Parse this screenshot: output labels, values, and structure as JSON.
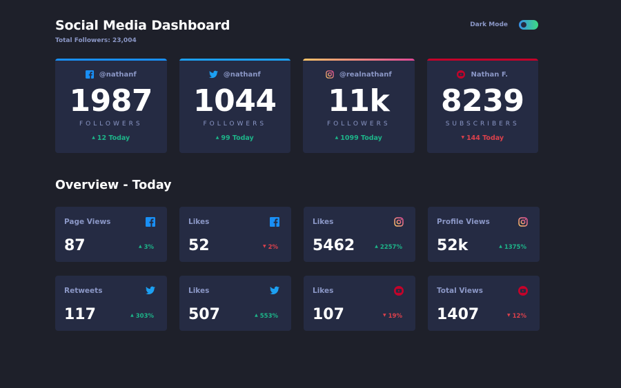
{
  "header": {
    "title": "Social Media Dashboard",
    "total_followers": "Total Followers: 23,004",
    "dark_mode_label": "Dark Mode",
    "dark_mode_on": true
  },
  "colors": {
    "background": "#1e202a",
    "card": "#252b43",
    "muted_text": "#8b97c6",
    "up": "#1db489",
    "down": "#dc414c",
    "facebook": "#198ff5",
    "twitter": "#1ca0f2",
    "instagram_start": "#fdc468",
    "instagram_end": "#df4996",
    "youtube": "#c4032a"
  },
  "cards": [
    {
      "platform": "facebook",
      "handle": "@nathanf",
      "count": "1987",
      "unit": "FOLLOWERS",
      "change": "12 Today",
      "direction": "up"
    },
    {
      "platform": "twitter",
      "handle": "@nathanf",
      "count": "1044",
      "unit": "FOLLOWERS",
      "change": "99 Today",
      "direction": "up"
    },
    {
      "platform": "instagram",
      "handle": "@realnathanf",
      "count": "11k",
      "unit": "FOLLOWERS",
      "change": "1099 Today",
      "direction": "up"
    },
    {
      "platform": "youtube",
      "handle": "Nathan F.",
      "count": "8239",
      "unit": "SUBSCRIBERS",
      "change": "144 Today",
      "direction": "down"
    }
  ],
  "overview": {
    "title": "Overview - Today",
    "tiles": [
      {
        "label": "Page Views",
        "platform": "facebook",
        "value": "87",
        "change": "3%",
        "direction": "up"
      },
      {
        "label": "Likes",
        "platform": "facebook",
        "value": "52",
        "change": "2%",
        "direction": "down"
      },
      {
        "label": "Likes",
        "platform": "instagram",
        "value": "5462",
        "change": "2257%",
        "direction": "up"
      },
      {
        "label": "Profile Views",
        "platform": "instagram",
        "value": "52k",
        "change": "1375%",
        "direction": "up"
      },
      {
        "label": "Retweets",
        "platform": "twitter",
        "value": "117",
        "change": "303%",
        "direction": "up"
      },
      {
        "label": "Likes",
        "platform": "twitter",
        "value": "507",
        "change": "553%",
        "direction": "up"
      },
      {
        "label": "Likes",
        "platform": "youtube",
        "value": "107",
        "change": "19%",
        "direction": "down"
      },
      {
        "label": "Total Views",
        "platform": "youtube",
        "value": "1407",
        "change": "12%",
        "direction": "down"
      }
    ]
  }
}
